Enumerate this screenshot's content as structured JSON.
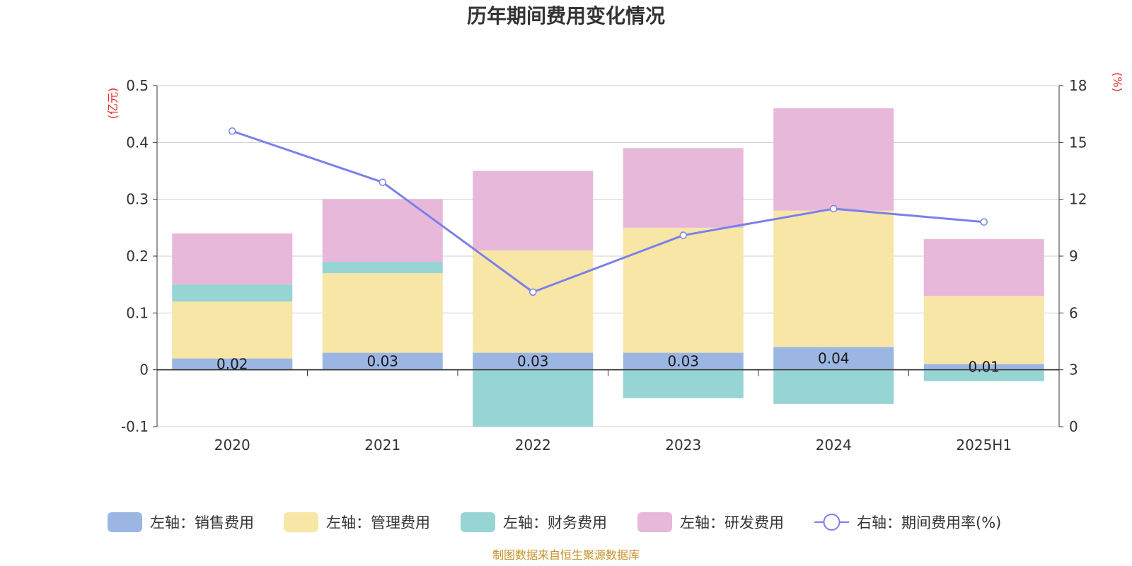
{
  "chart_data": {
    "type": "bar",
    "title": "历年期间费用变化情况",
    "categories": [
      "2020",
      "2021",
      "2022",
      "2023",
      "2024",
      "2025H1"
    ],
    "left_axis": {
      "unit": "(亿元)",
      "ylim": [
        -0.1,
        0.5
      ],
      "ticks": [
        "-0.1",
        "0",
        "0.1",
        "0.2",
        "0.3",
        "0.4",
        "0.5"
      ]
    },
    "right_axis": {
      "unit": "(%)",
      "ylim": [
        0,
        18
      ],
      "ticks": [
        "0",
        "3",
        "6",
        "9",
        "12",
        "15",
        "18"
      ]
    },
    "series": [
      {
        "name": "左轴：销售费用",
        "type": "bar",
        "axis": "left",
        "color": "#9bb6e2",
        "values": [
          0.02,
          0.03,
          0.03,
          0.03,
          0.04,
          0.01
        ],
        "labels": [
          "0.02",
          "0.03",
          "0.03",
          "0.03",
          "0.04",
          "0.01"
        ]
      },
      {
        "name": "左轴：管理费用",
        "type": "bar",
        "axis": "left",
        "color": "#f7e6a6",
        "values": [
          0.1,
          0.14,
          0.18,
          0.22,
          0.24,
          0.12
        ]
      },
      {
        "name": "左轴：财务费用",
        "type": "bar",
        "axis": "left",
        "color": "#97d4d4",
        "values": [
          0.03,
          0.02,
          -0.1,
          -0.05,
          -0.06,
          -0.02
        ]
      },
      {
        "name": "左轴：研发费用",
        "type": "bar",
        "axis": "left",
        "color": "#e7b8d9",
        "values": [
          0.09,
          0.11,
          0.14,
          0.14,
          0.18,
          0.1
        ]
      },
      {
        "name": "右轴：期间费用率(%)",
        "type": "line",
        "axis": "right",
        "color": "#7b80ea",
        "values": [
          15.6,
          12.9,
          7.1,
          10.1,
          11.5,
          10.8
        ]
      }
    ],
    "legend": "bottom",
    "grid": true
  },
  "source": "制图数据来自恒生聚源数据库"
}
